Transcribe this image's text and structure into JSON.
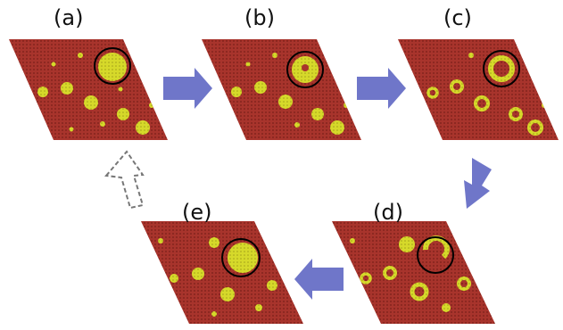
{
  "panels": [
    {
      "id": "a",
      "label": "(a)"
    },
    {
      "id": "b",
      "label": "(b)"
    },
    {
      "id": "c",
      "label": "(c)"
    },
    {
      "id": "d",
      "label": "(d)"
    },
    {
      "id": "e",
      "label": "(e)"
    }
  ],
  "colors": {
    "substrate": "#a8342c",
    "substrate_dot": "#7a1e18",
    "domain": "#d6d92a",
    "domain_dot": "#a3a01a",
    "arrow": "#6f76c9",
    "arrow_dashed_stroke": "#777777",
    "highlight_circle": "#000000"
  },
  "icons": {
    "process_arrow": "block-arrow-icon",
    "return_arrow": "dashed-block-arrow-icon",
    "highlight": "highlight-circle-icon"
  }
}
